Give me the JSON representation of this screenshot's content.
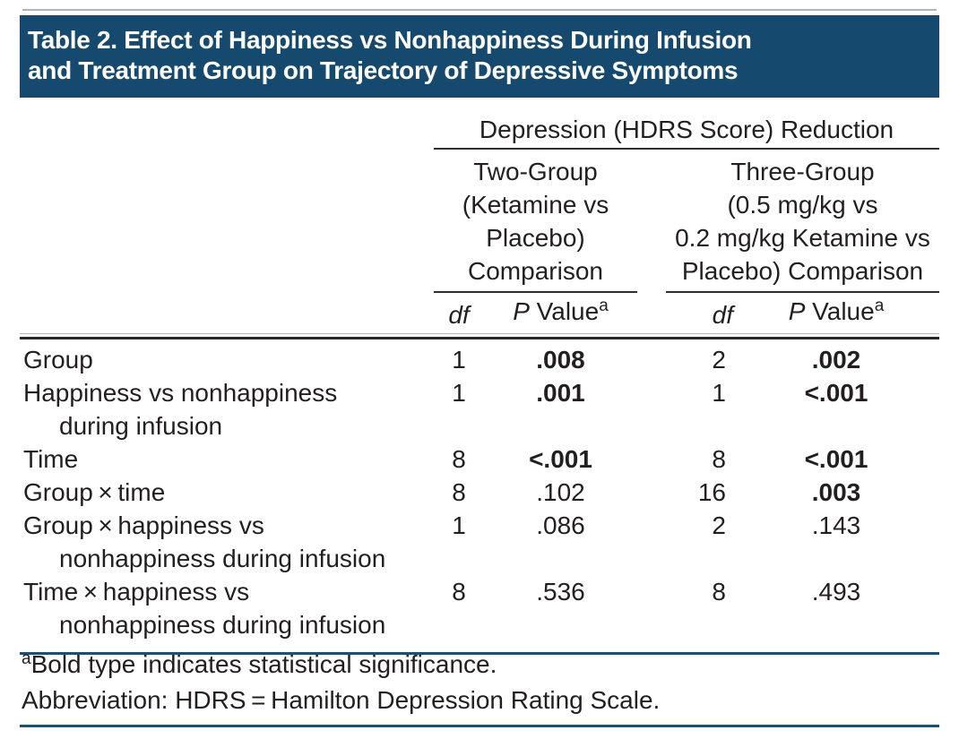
{
  "title": {
    "line1": "Table 2. Effect of Happiness vs Nonhappiness During Infusion",
    "line2": "and Treatment Group on Trajectory of Depressive Symptoms"
  },
  "table": {
    "spanner": "Depression (HDRS Score) Reduction",
    "groups": [
      {
        "lines": [
          "Two-Group",
          "(Ketamine vs",
          "Placebo)",
          "Comparison"
        ]
      },
      {
        "lines": [
          "Three-Group",
          "(0.5 mg/kg vs",
          "0.2 mg/kg Ketamine vs",
          "Placebo) Comparison"
        ]
      }
    ],
    "col_headers": {
      "df": "df",
      "p": "P",
      "value": " Value",
      "sup": "a"
    },
    "rows": [
      {
        "line1": "Group",
        "line2": "",
        "df1": "1",
        "p1": ".008",
        "p1_bold": true,
        "df2": "2",
        "p2": ".002",
        "p2_bold": true
      },
      {
        "line1": "Happiness vs nonhappiness",
        "line2": "during infusion",
        "df1": "1",
        "p1": ".001",
        "p1_bold": true,
        "df2": "1",
        "p2": "<.001",
        "p2_bold": true
      },
      {
        "line1": "Time",
        "line2": "",
        "df1": "8",
        "p1": "<.001",
        "p1_bold": true,
        "df2": "8",
        "p2": "<.001",
        "p2_bold": true
      },
      {
        "line1": "Group × time",
        "line2": "",
        "df1": "8",
        "p1": ".102",
        "p1_bold": false,
        "df2": "16",
        "p2": ".003",
        "p2_bold": true
      },
      {
        "line1": "Group × happiness vs",
        "line2": "nonhappiness during infusion",
        "df1": "1",
        "p1": ".086",
        "p1_bold": false,
        "df2": "2",
        "p2": ".143",
        "p2_bold": false
      },
      {
        "line1": "Time × happiness vs",
        "line2": "nonhappiness during infusion",
        "df1": "8",
        "p1": ".536",
        "p1_bold": false,
        "df2": "8",
        "p2": ".493",
        "p2_bold": false
      }
    ]
  },
  "footnotes": {
    "sup": "a",
    "line1": "Bold type indicates statistical significance.",
    "line2": "Abbreviation: HDRS = Hamilton Depression Rating Scale."
  },
  "colors": {
    "navy": "#15496d",
    "rule_navy": "#1a5172",
    "rule_dark": "#262626",
    "rule_light_top": "#a9b6c6",
    "text": "#231f20",
    "title_text": "#ffffff"
  }
}
